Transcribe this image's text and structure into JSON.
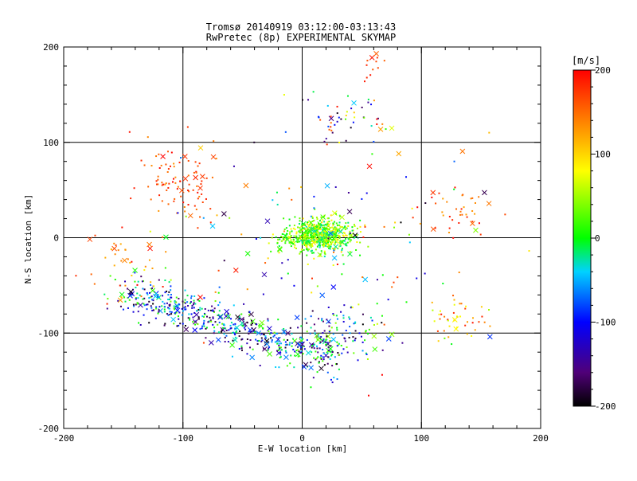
{
  "chart_data": {
    "type": "scatter",
    "title": "Tromsø 20140919 03:12:00-03:13:43",
    "subtitle": "RwPretec (8p) EXPERIMENTAL SKYMAP",
    "xlabel": "E-W location [km]",
    "ylabel": "N-S location [km]",
    "xlim": [
      -200,
      200
    ],
    "ylim": [
      -200,
      200
    ],
    "xticks": [
      "-200",
      "-100",
      "0",
      "100",
      "200"
    ],
    "yticks": [
      "-200",
      "-100",
      "0",
      "100",
      "200"
    ],
    "grid_lines": {
      "x": [
        -100,
        0,
        100
      ],
      "y": [
        -100,
        0,
        100
      ]
    },
    "colorbar": {
      "label": "[m/s]",
      "min": -200,
      "max": 200,
      "ticks": [
        "-200",
        "-100",
        "0",
        "100",
        "200"
      ],
      "colormap": "rainbow: black-blue-cyan-green-yellow-red"
    },
    "marker_types": [
      "dot",
      "x"
    ],
    "clusters": [
      {
        "name": "central-cluster",
        "center": [
          15,
          2
        ],
        "spread": [
          25,
          15
        ],
        "color_range": [
          -30,
          100
        ],
        "count": 600
      },
      {
        "name": "southwest-band",
        "start": [
          -150,
          -55
        ],
        "end": [
          30,
          -130
        ],
        "width": 10,
        "color_range": [
          -200,
          40
        ],
        "count": 550
      },
      {
        "name": "northwest-region",
        "center": [
          -105,
          55
        ],
        "spread": [
          28,
          28
        ],
        "color_range": [
          130,
          200
        ],
        "count": 90
      },
      {
        "name": "west-edge",
        "center": [
          -150,
          -25
        ],
        "spread": [
          35,
          35
        ],
        "color_range": [
          100,
          200
        ],
        "count": 40
      },
      {
        "name": "north-sparse",
        "center": [
          40,
          120
        ],
        "spread": [
          35,
          25
        ],
        "color_range": [
          -200,
          200
        ],
        "count": 50
      },
      {
        "name": "northeast-red-arc",
        "center": [
          60,
          180
        ],
        "spread": [
          10,
          15
        ],
        "color_range": [
          150,
          200
        ],
        "count": 12
      },
      {
        "name": "east-region",
        "center": [
          130,
          30
        ],
        "spread": [
          25,
          25
        ],
        "color_range": [
          120,
          200
        ],
        "count": 40
      },
      {
        "name": "southeast-arc",
        "center": [
          130,
          -90
        ],
        "spread": [
          20,
          25
        ],
        "color_range": [
          60,
          200
        ],
        "count": 40
      },
      {
        "name": "south-central",
        "center": [
          30,
          -100
        ],
        "spread": [
          30,
          25
        ],
        "color_range": [
          -200,
          60
        ],
        "count": 120
      },
      {
        "name": "scattered",
        "center": [
          0,
          0
        ],
        "spread": [
          120,
          110
        ],
        "color_range": [
          -200,
          200
        ],
        "count": 150
      }
    ]
  }
}
